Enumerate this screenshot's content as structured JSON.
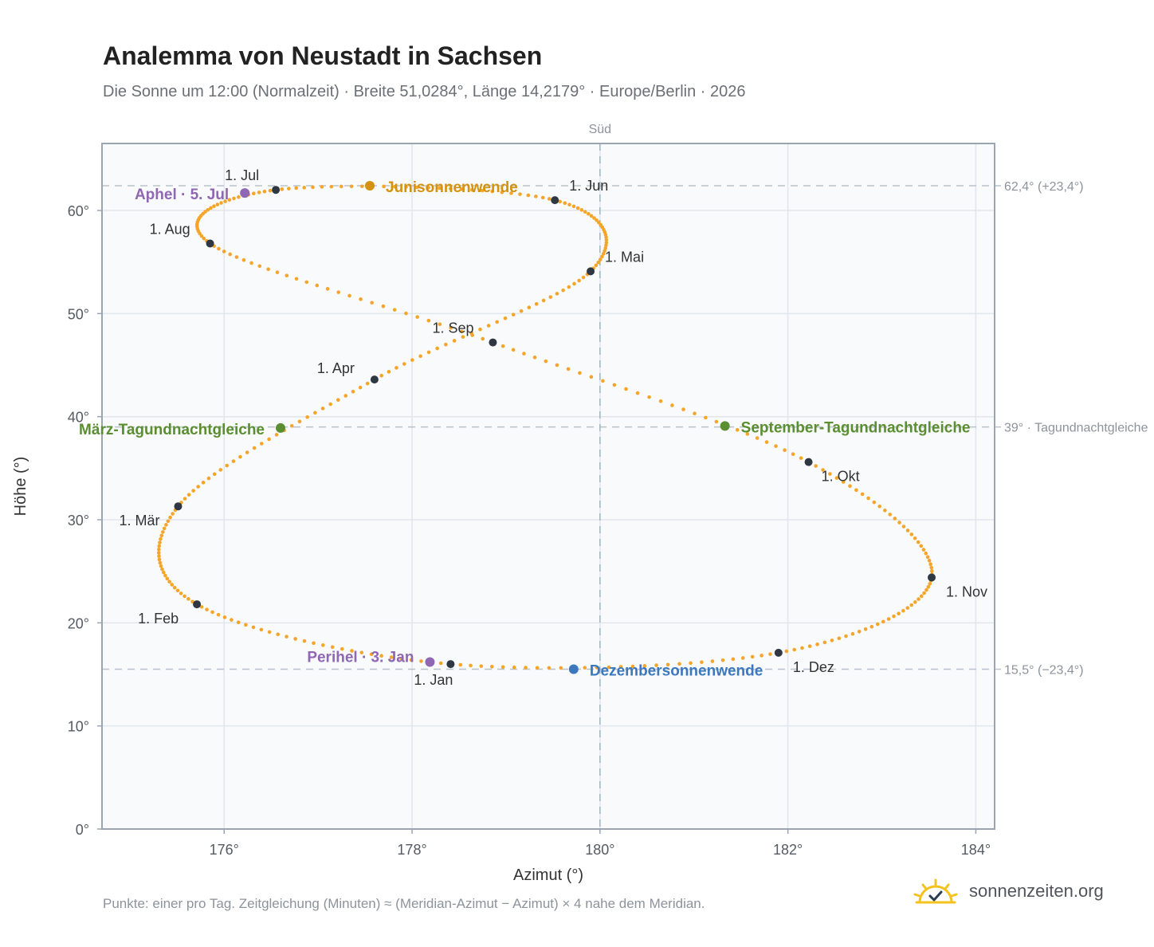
{
  "title": "Analemma von Neustadt in Sachsen",
  "subtitle": "Die Sonne um 12:00 (Normalzeit) · Breite 51,0284°, Länge 14,2179° · Europe/Berlin · 2026",
  "footnote": "Punkte: einer pro Tag. Zeitgleichung (Minuten) ≈ (Meridian-Azimut − Azimut) × 4 nahe dem Meridian.",
  "brand": {
    "name": "sonnenzeiten.org",
    "icon": "sun-check-icon"
  },
  "chart_data": {
    "type": "scatter",
    "xlabel": "Azimut (°)",
    "ylabel": "Höhe (°)",
    "xlim": [
      174.7,
      184.2
    ],
    "ylim": [
      0,
      66.5
    ],
    "xticks": [
      176,
      178,
      180,
      182,
      184
    ],
    "yticks": [
      0,
      10,
      20,
      30,
      40,
      50,
      60
    ],
    "xtick_labels": [
      "176°",
      "178°",
      "180°",
      "182°",
      "184°"
    ],
    "ytick_labels": [
      "0°",
      "10°",
      "20°",
      "30°",
      "40°",
      "50°",
      "60°"
    ],
    "grid": true,
    "south": {
      "x": 180,
      "label": "Süd"
    },
    "reference_lines": [
      {
        "y": 62.4,
        "label": "62,4° (+23,4°)"
      },
      {
        "y": 39.0,
        "label": "39° · Tagundnachtgleiche"
      },
      {
        "y": 15.5,
        "label": "15,5° (−23,4°)"
      }
    ],
    "path_color": "#f4a52a",
    "month_points": [
      {
        "label": "1. Jan",
        "x": 178.41,
        "y": 16.0
      },
      {
        "label": "1. Feb",
        "x": 175.71,
        "y": 21.8
      },
      {
        "label": "1. Mär",
        "x": 175.51,
        "y": 31.3
      },
      {
        "label": "1. Apr",
        "x": 177.6,
        "y": 43.6
      },
      {
        "label": "1. Mai",
        "x": 179.9,
        "y": 54.1
      },
      {
        "label": "1. Jun",
        "x": 179.52,
        "y": 61.0
      },
      {
        "label": "1. Jul",
        "x": 176.55,
        "y": 62.0
      },
      {
        "label": "1. Aug",
        "x": 175.85,
        "y": 56.8
      },
      {
        "label": "1. Sep",
        "x": 178.86,
        "y": 47.2
      },
      {
        "label": "1. Okt",
        "x": 182.22,
        "y": 35.6
      },
      {
        "label": "1. Nov",
        "x": 183.53,
        "y": 24.4
      },
      {
        "label": "1. Dez",
        "x": 181.9,
        "y": 17.1
      }
    ],
    "events": [
      {
        "label": "Junisonnenwende",
        "x": 177.55,
        "y": 62.4,
        "color": "#d4920f"
      },
      {
        "label": "Dezembersonnenwende",
        "x": 179.72,
        "y": 15.5,
        "color": "#3c78be"
      },
      {
        "label": "März-Tagundnachtgleiche",
        "x": 176.6,
        "y": 38.9,
        "color": "#5a8e31"
      },
      {
        "label": "September-Tagundnachtgleiche",
        "x": 181.33,
        "y": 39.1,
        "color": "#5a8e31"
      },
      {
        "label": "Aphel · 5. Jul",
        "x": 176.22,
        "y": 61.7,
        "color": "#8f67b3"
      },
      {
        "label": "Perihel · 3. Jan",
        "x": 178.19,
        "y": 16.2,
        "color": "#8f67b3"
      }
    ]
  }
}
